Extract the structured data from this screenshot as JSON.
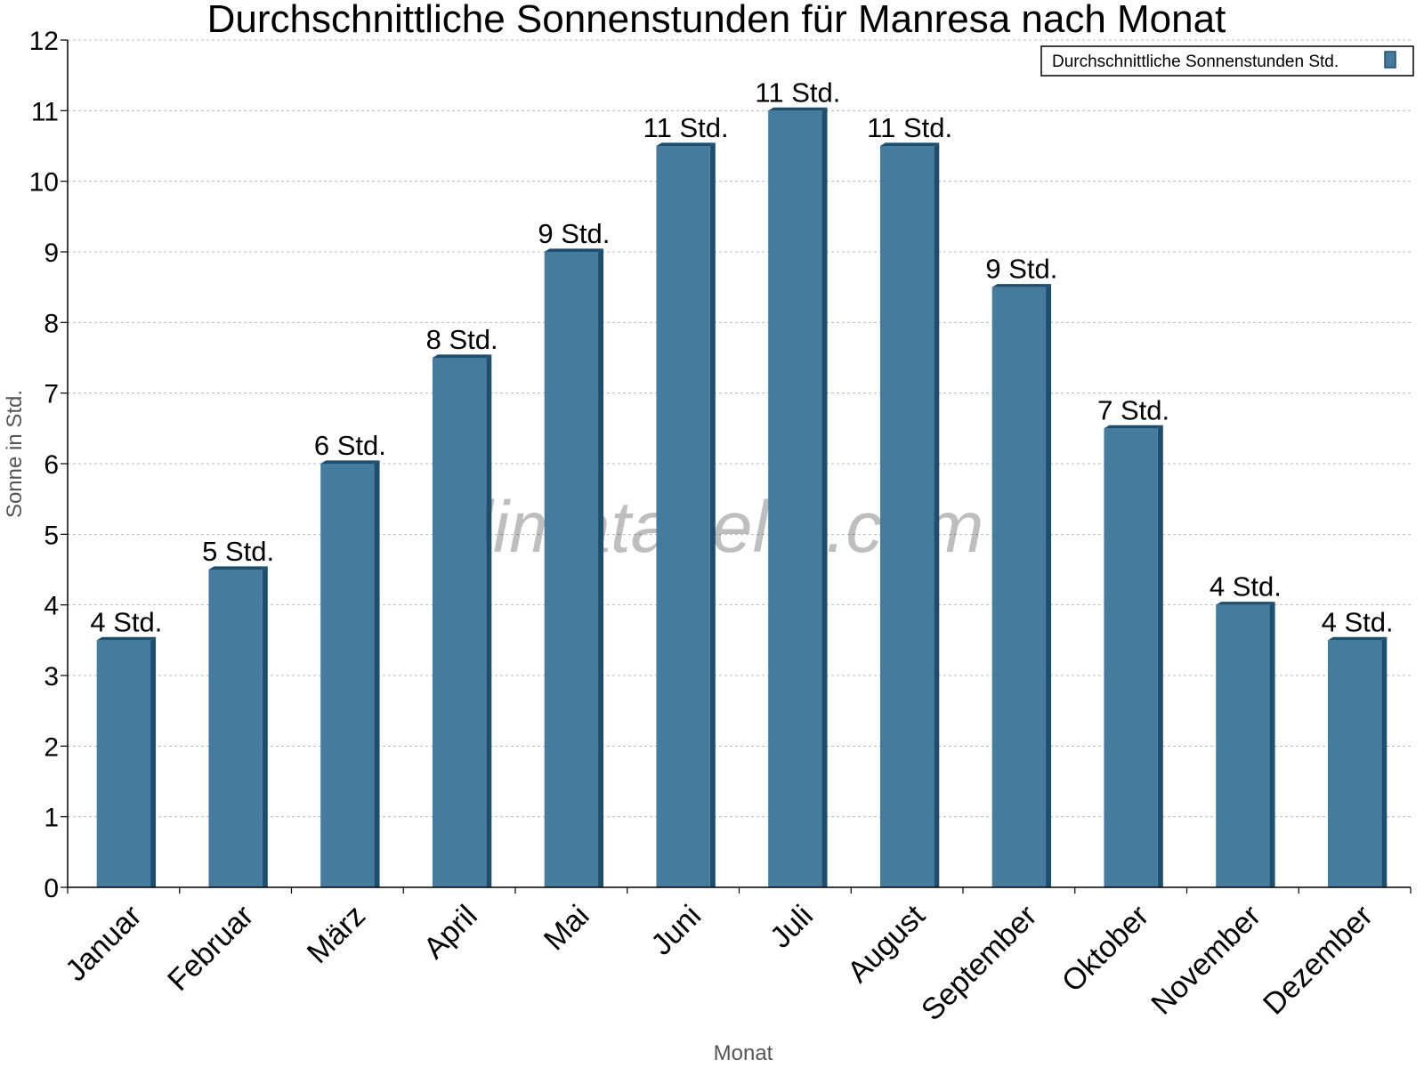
{
  "chart_data": {
    "type": "bar",
    "title": "Durchschnittliche Sonnenstunden für Manresa nach Monat",
    "xlabel": "Monat",
    "ylabel": "Sonne in Std.",
    "ylim": [
      0,
      12
    ],
    "yticks": [
      "0",
      "1",
      "2",
      "3",
      "4",
      "5",
      "6",
      "7",
      "8",
      "9",
      "10",
      "11",
      "12"
    ],
    "grid": true,
    "legend_position": "top-right",
    "categories": [
      "Januar",
      "Februar",
      "März",
      "April",
      "Mai",
      "Juni",
      "Juli",
      "August",
      "September",
      "Oktober",
      "November",
      "Dezember"
    ],
    "series": [
      {
        "name": "Durchschnittliche Sonnenstunden Std.",
        "values": [
          3.5,
          4.5,
          6,
          7.5,
          9,
          10.5,
          11,
          10.5,
          8.5,
          6.5,
          4,
          3.5
        ],
        "labels": [
          "4 Std.",
          "5 Std.",
          "6 Std.",
          "8 Std.",
          "9 Std.",
          "11 Std.",
          "11 Std.",
          "11 Std.",
          "9 Std.",
          "7 Std.",
          "4 Std.",
          "4 Std."
        ]
      }
    ],
    "colors": {
      "bar": "#457b9d",
      "bar_side": "#1d4e6e",
      "grid": "#bbbbbb"
    },
    "watermark": "klimatabelle.com"
  }
}
